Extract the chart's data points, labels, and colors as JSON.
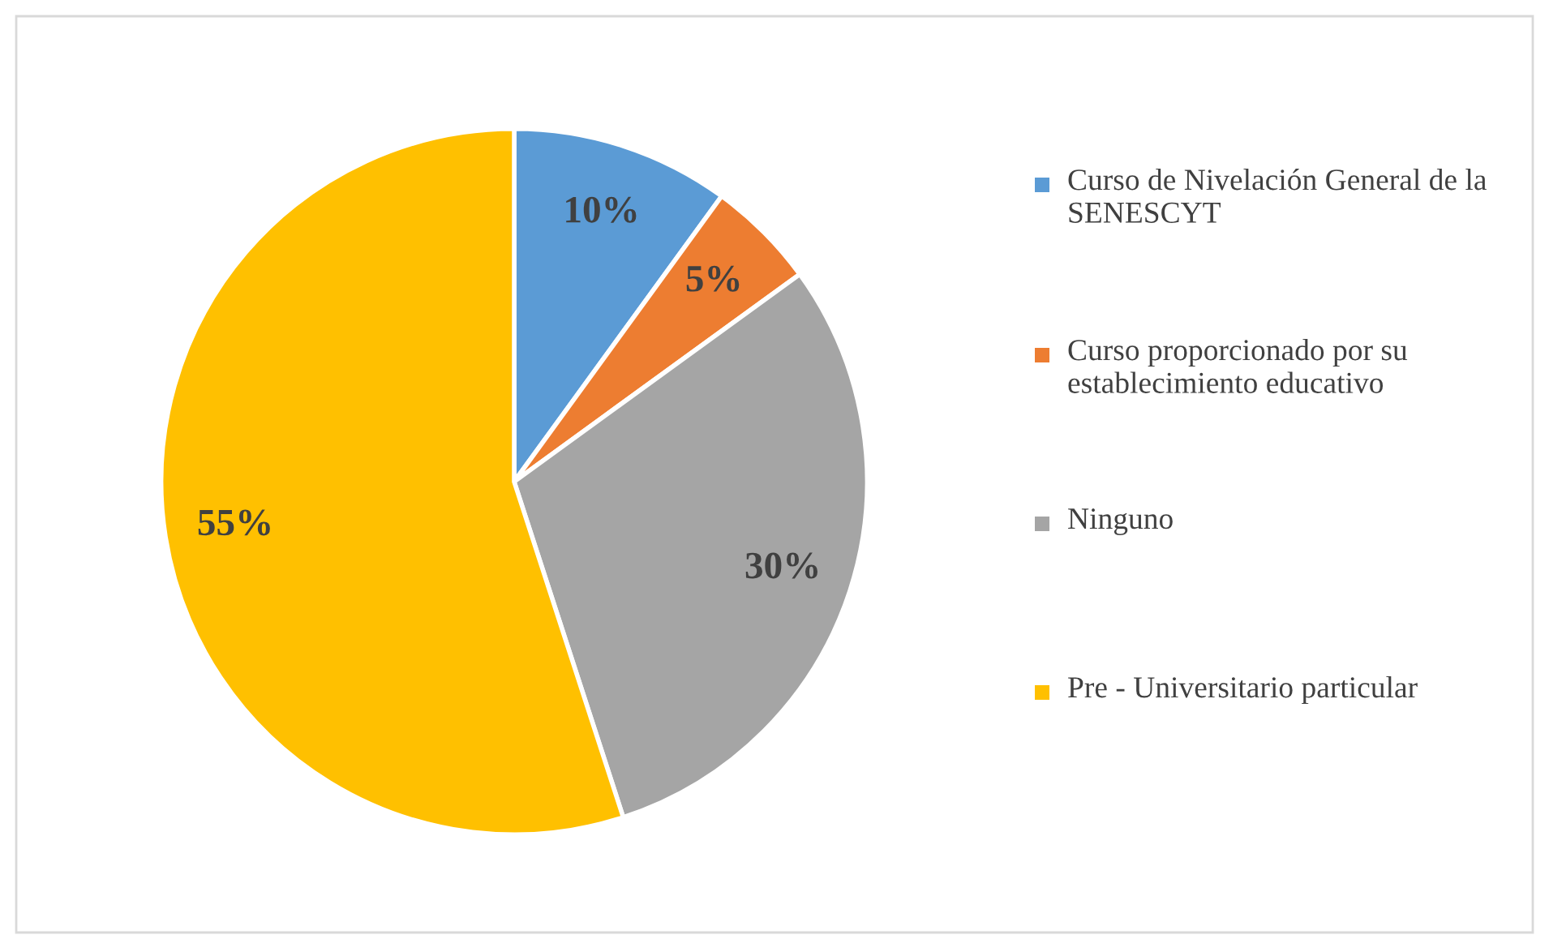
{
  "chart_data": {
    "type": "pie",
    "categories": [
      "Curso de Nivelación General de la SENESCYT",
      "Curso proporcionado por su establecimiento educativo",
      "Ninguno",
      "Pre - Universitario particular"
    ],
    "values": [
      10,
      5,
      30,
      55
    ],
    "colors": [
      "#5b9bd5",
      "#ed7d31",
      "#a5a5a5",
      "#ffc000"
    ],
    "value_labels": [
      "10%",
      "5%",
      "30%",
      "55%"
    ],
    "legend": "right"
  }
}
